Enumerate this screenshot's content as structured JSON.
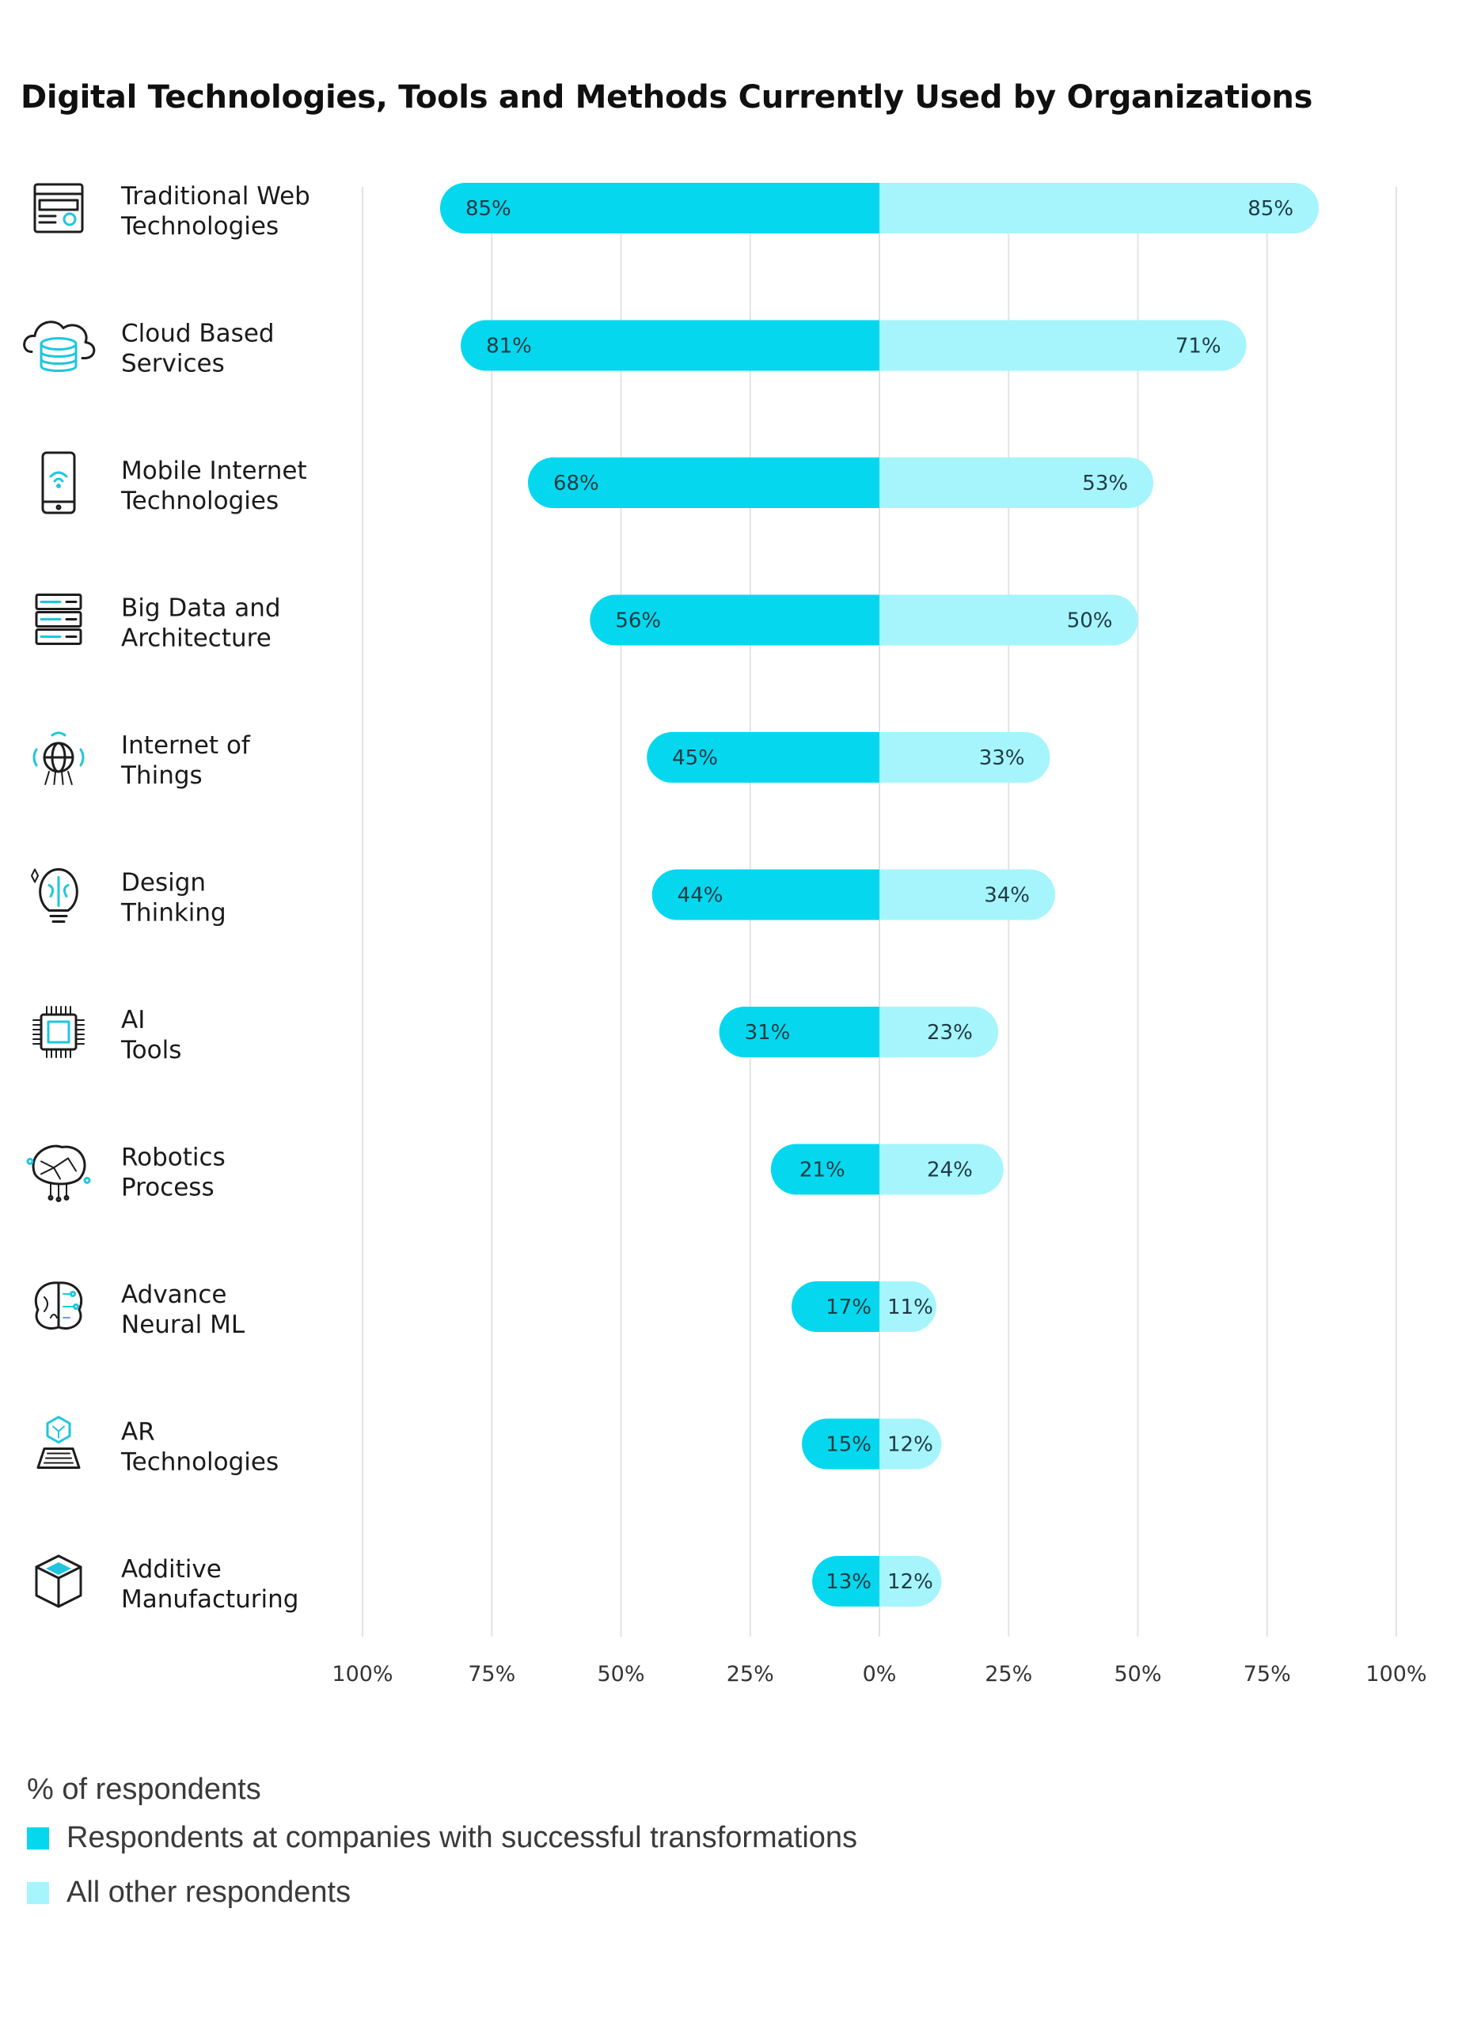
{
  "title": "Digital Technologies, Tools and Methods Currently Used by Organizations",
  "legend": {
    "title": "% of respondents",
    "items": [
      {
        "label": "Respondents at companies with successful transformations",
        "color": "#05d8ee"
      },
      {
        "label": "All other respondents",
        "color": "#a6f5fd"
      }
    ]
  },
  "colors": {
    "series_a": "#05d8ee",
    "series_b": "#a6f5fd",
    "grid": "#e3e3e3",
    "icon_stroke": "#1d1d1d",
    "icon_accent": "#1fc6de"
  },
  "chart_data": {
    "type": "bar",
    "orientation": "horizontal-diverging",
    "title": "Digital Technologies, Tools and Methods Currently Used by Organizations",
    "xlabel": "% of respondents",
    "xlim": [
      -100,
      100
    ],
    "tick_labels": [
      "100%",
      "75%",
      "50%",
      "25%",
      "0%",
      "25%",
      "50%",
      "75%",
      "100%"
    ],
    "grid": true,
    "legend_position": "bottom-left",
    "categories": [
      {
        "label": [
          "Traditional Web",
          "Technologies"
        ],
        "icon": "browser-window-icon"
      },
      {
        "label": [
          "Cloud Based",
          "Services"
        ],
        "icon": "cloud-database-icon"
      },
      {
        "label": [
          "Mobile Internet",
          "Technologies"
        ],
        "icon": "smartphone-wifi-icon"
      },
      {
        "label": [
          "Big Data and",
          "Architecture"
        ],
        "icon": "server-rack-icon"
      },
      {
        "label": [
          "Internet of",
          "Things"
        ],
        "icon": "iot-globe-icon"
      },
      {
        "label": [
          "Design",
          "Thinking"
        ],
        "icon": "lightbulb-brain-icon"
      },
      {
        "label": [
          "AI",
          "Tools"
        ],
        "icon": "ai-chip-icon"
      },
      {
        "label": [
          "Robotics",
          "Process"
        ],
        "icon": "network-brain-icon"
      },
      {
        "label": [
          "Advance",
          "Neural ML"
        ],
        "icon": "circuit-brain-icon"
      },
      {
        "label": [
          "AR",
          "Technologies"
        ],
        "icon": "ar-laptop-icon"
      },
      {
        "label": [
          "Additive",
          "Manufacturing"
        ],
        "icon": "cube-icon"
      }
    ],
    "series": [
      {
        "name": "Respondents at companies with successful transformations",
        "side": "left",
        "values": [
          85,
          81,
          68,
          56,
          45,
          44,
          31,
          21,
          17,
          15,
          13
        ]
      },
      {
        "name": "All other respondents",
        "side": "right",
        "values": [
          85,
          71,
          53,
          50,
          33,
          34,
          23,
          24,
          11,
          12,
          12
        ]
      }
    ]
  }
}
